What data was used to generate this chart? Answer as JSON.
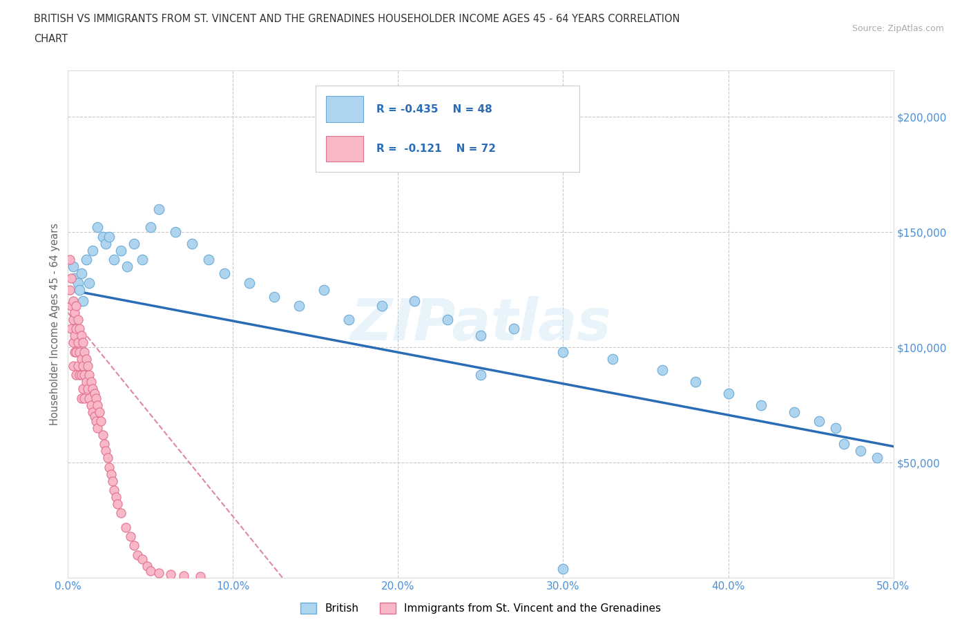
{
  "title_line1": "BRITISH VS IMMIGRANTS FROM ST. VINCENT AND THE GRENADINES HOUSEHOLDER INCOME AGES 45 - 64 YEARS CORRELATION",
  "title_line2": "CHART",
  "source": "Source: ZipAtlas.com",
  "watermark": "ZIPatlas",
  "ylabel": "Householder Income Ages 45 - 64 years",
  "xlim": [
    0.0,
    0.5
  ],
  "ylim": [
    0,
    220000
  ],
  "xticks": [
    0.0,
    0.1,
    0.2,
    0.3,
    0.4,
    0.5
  ],
  "yticks": [
    0,
    50000,
    100000,
    150000,
    200000
  ],
  "ytick_labels": [
    "",
    "$50,000",
    "$100,000",
    "$150,000",
    "$200,000"
  ],
  "xtick_labels": [
    "0.0%",
    "10.0%",
    "20.0%",
    "30.0%",
    "40.0%",
    "50.0%"
  ],
  "british_color": "#aed4f0",
  "british_edge_color": "#6aaad4",
  "immigrant_color": "#f9b8c8",
  "immigrant_edge_color": "#e07090",
  "trendline_british_color": "#2a6cb5",
  "trendline_immigrant_color": "#e08898",
  "legend_R_british": "R = -0.435",
  "legend_N_british": "N = 48",
  "legend_R_immigrant": "R =  -0.121",
  "legend_N_immigrant": "N = 72",
  "british_label": "British",
  "immigrant_label": "Immigrants from St. Vincent and the Grenadines",
  "background_color": "#ffffff",
  "grid_color": "#c8c8c8",
  "axis_label_color": "#4a90d9",
  "british_x": [
    0.003,
    0.004,
    0.006,
    0.007,
    0.008,
    0.009,
    0.011,
    0.013,
    0.015,
    0.018,
    0.021,
    0.023,
    0.025,
    0.028,
    0.032,
    0.036,
    0.04,
    0.045,
    0.05,
    0.055,
    0.065,
    0.075,
    0.085,
    0.095,
    0.11,
    0.125,
    0.14,
    0.155,
    0.17,
    0.19,
    0.21,
    0.23,
    0.25,
    0.27,
    0.3,
    0.33,
    0.36,
    0.38,
    0.4,
    0.42,
    0.44,
    0.455,
    0.465,
    0.47,
    0.48,
    0.49,
    0.25,
    0.3
  ],
  "british_y": [
    135000,
    130000,
    128000,
    125000,
    132000,
    120000,
    138000,
    128000,
    142000,
    152000,
    148000,
    145000,
    148000,
    138000,
    142000,
    135000,
    145000,
    138000,
    152000,
    160000,
    150000,
    145000,
    138000,
    132000,
    128000,
    122000,
    118000,
    125000,
    112000,
    118000,
    120000,
    112000,
    105000,
    108000,
    98000,
    95000,
    90000,
    85000,
    80000,
    75000,
    72000,
    68000,
    65000,
    58000,
    55000,
    52000,
    88000,
    4000
  ],
  "immigrant_x": [
    0.001,
    0.001,
    0.002,
    0.002,
    0.002,
    0.003,
    0.003,
    0.003,
    0.003,
    0.004,
    0.004,
    0.004,
    0.005,
    0.005,
    0.005,
    0.005,
    0.006,
    0.006,
    0.006,
    0.007,
    0.007,
    0.007,
    0.008,
    0.008,
    0.008,
    0.008,
    0.009,
    0.009,
    0.009,
    0.01,
    0.01,
    0.01,
    0.011,
    0.011,
    0.012,
    0.012,
    0.013,
    0.013,
    0.014,
    0.014,
    0.015,
    0.015,
    0.016,
    0.016,
    0.017,
    0.017,
    0.018,
    0.018,
    0.019,
    0.02,
    0.021,
    0.022,
    0.023,
    0.024,
    0.025,
    0.026,
    0.027,
    0.028,
    0.029,
    0.03,
    0.032,
    0.035,
    0.038,
    0.04,
    0.042,
    0.045,
    0.048,
    0.05,
    0.055,
    0.062,
    0.07,
    0.08
  ],
  "immigrant_y": [
    138000,
    125000,
    130000,
    118000,
    108000,
    120000,
    112000,
    102000,
    92000,
    115000,
    105000,
    98000,
    118000,
    108000,
    98000,
    88000,
    112000,
    102000,
    92000,
    108000,
    98000,
    88000,
    105000,
    95000,
    88000,
    78000,
    102000,
    92000,
    82000,
    98000,
    88000,
    78000,
    95000,
    85000,
    92000,
    82000,
    88000,
    78000,
    85000,
    75000,
    82000,
    72000,
    80000,
    70000,
    78000,
    68000,
    75000,
    65000,
    72000,
    68000,
    62000,
    58000,
    55000,
    52000,
    48000,
    45000,
    42000,
    38000,
    35000,
    32000,
    28000,
    22000,
    18000,
    14000,
    10000,
    8000,
    5000,
    3000,
    2000,
    1500,
    1000,
    500
  ]
}
